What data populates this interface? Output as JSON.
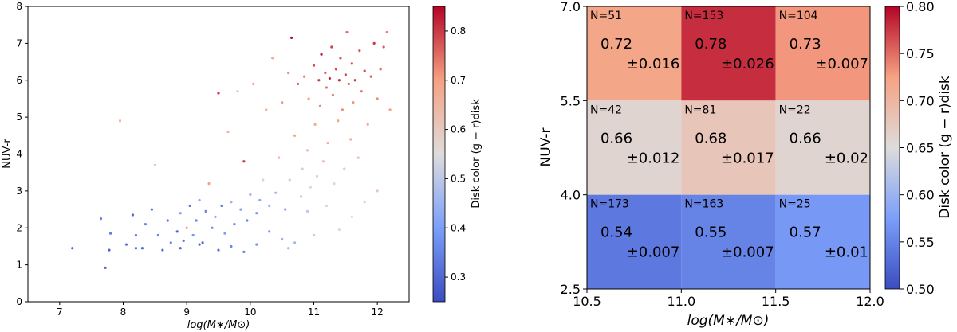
{
  "colors": {
    "cold": "#3b4cc0",
    "mid": "#dddcdc",
    "warm": "#b40426"
  },
  "chart_data": [
    {
      "type": "scatter",
      "title": "",
      "xlabel": "log(M∗/M⊙)",
      "ylabel": "NUV-r",
      "xlim": [
        6.5,
        12.5
      ],
      "ylim": [
        0,
        8
      ],
      "xticks": [
        "7",
        "8",
        "9",
        "10",
        "11",
        "12"
      ],
      "yticks": [
        "0",
        "1",
        "2",
        "3",
        "4",
        "5",
        "6",
        "7",
        "8"
      ],
      "grid": false,
      "colorbar": {
        "label": "Disk color (g − r)disk",
        "range": [
          0.25,
          0.85
        ],
        "ticks": [
          "0.3",
          "0.4",
          "0.5",
          "0.6",
          "0.7",
          "0.8"
        ]
      },
      "points": [
        [
          7.2,
          1.45,
          0.3
        ],
        [
          7.65,
          2.25,
          0.35
        ],
        [
          7.72,
          0.92,
          0.3
        ],
        [
          7.78,
          1.4,
          0.3
        ],
        [
          7.8,
          1.85,
          0.34
        ],
        [
          7.95,
          4.9,
          0.65
        ],
        [
          8.05,
          1.55,
          0.32
        ],
        [
          8.15,
          2.35,
          0.3
        ],
        [
          8.2,
          1.8,
          0.33
        ],
        [
          8.3,
          1.45,
          0.3
        ],
        [
          8.35,
          2.1,
          0.36
        ],
        [
          8.45,
          2.5,
          0.32
        ],
        [
          8.5,
          3.7,
          0.6
        ],
        [
          8.55,
          1.8,
          0.35
        ],
        [
          8.62,
          1.4,
          0.31
        ],
        [
          8.7,
          2.2,
          0.33
        ],
        [
          8.75,
          1.6,
          0.36
        ],
        [
          8.85,
          1.9,
          0.3
        ],
        [
          8.9,
          2.4,
          0.4
        ],
        [
          8.95,
          1.65,
          0.34
        ],
        [
          9.0,
          2.0,
          0.7
        ],
        [
          9.05,
          2.6,
          0.32
        ],
        [
          9.1,
          1.8,
          0.38
        ],
        [
          9.15,
          2.2,
          0.35
        ],
        [
          9.2,
          2.75,
          0.41
        ],
        [
          9.25,
          1.6,
          0.3
        ],
        [
          9.3,
          2.45,
          0.36
        ],
        [
          9.35,
          3.2,
          0.7
        ],
        [
          9.4,
          2.0,
          0.38
        ],
        [
          9.45,
          2.3,
          0.42
        ],
        [
          9.5,
          5.65,
          0.8
        ],
        [
          9.55,
          2.6,
          0.34
        ],
        [
          9.6,
          1.85,
          0.4
        ],
        [
          9.65,
          4.6,
          0.65
        ],
        [
          9.7,
          2.7,
          0.45
        ],
        [
          9.75,
          2.1,
          0.36
        ],
        [
          9.8,
          5.7,
          0.62
        ],
        [
          9.85,
          2.5,
          0.4
        ],
        [
          9.9,
          3.8,
          0.8
        ],
        [
          9.95,
          2.2,
          0.35
        ],
        [
          10.0,
          2.9,
          0.45
        ],
        [
          10.05,
          5.9,
          0.7
        ],
        [
          10.1,
          2.4,
          0.39
        ],
        [
          10.15,
          2.75,
          0.42
        ],
        [
          10.2,
          3.3,
          0.58
        ],
        [
          10.25,
          5.2,
          0.68
        ],
        [
          10.3,
          2.6,
          0.44
        ],
        [
          10.35,
          6.6,
          0.68
        ],
        [
          10.4,
          2.95,
          0.47
        ],
        [
          10.45,
          3.9,
          0.66
        ],
        [
          10.5,
          5.4,
          0.72
        ],
        [
          10.55,
          2.5,
          0.42
        ],
        [
          10.6,
          6.2,
          0.72
        ],
        [
          10.62,
          3.3,
          0.52
        ],
        [
          10.65,
          7.15,
          0.84
        ],
        [
          10.7,
          4.5,
          0.7
        ],
        [
          10.75,
          5.9,
          0.75
        ],
        [
          10.8,
          2.85,
          0.5
        ],
        [
          10.82,
          3.6,
          0.6
        ],
        [
          10.85,
          6.1,
          0.73
        ],
        [
          10.9,
          4.1,
          0.64
        ],
        [
          10.92,
          5.5,
          0.7
        ],
        [
          10.95,
          3.1,
          0.55
        ],
        [
          11.0,
          6.4,
          0.78
        ],
        [
          11.02,
          4.8,
          0.68
        ],
        [
          11.05,
          3.4,
          0.58
        ],
        [
          11.08,
          6.0,
          0.8
        ],
        [
          11.1,
          5.3,
          0.72
        ],
        [
          11.12,
          6.7,
          0.83
        ],
        [
          11.15,
          3.8,
          0.62
        ],
        [
          11.18,
          6.2,
          0.76
        ],
        [
          11.2,
          5.8,
          0.74
        ],
        [
          11.22,
          4.3,
          0.66
        ],
        [
          11.25,
          6.05,
          0.82
        ],
        [
          11.28,
          6.9,
          0.79
        ],
        [
          11.3,
          5.6,
          0.73
        ],
        [
          11.32,
          3.2,
          0.56
        ],
        [
          11.35,
          6.3,
          0.78
        ],
        [
          11.38,
          4.9,
          0.7
        ],
        [
          11.4,
          6.0,
          0.81
        ],
        [
          11.42,
          6.6,
          0.77
        ],
        [
          11.45,
          5.2,
          0.72
        ],
        [
          11.48,
          3.6,
          0.6
        ],
        [
          11.5,
          6.15,
          0.79
        ],
        [
          11.52,
          7.3,
          0.75
        ],
        [
          11.55,
          5.9,
          0.76
        ],
        [
          11.58,
          4.4,
          0.67
        ],
        [
          11.6,
          6.45,
          0.78
        ],
        [
          11.62,
          5.4,
          0.71
        ],
        [
          11.65,
          6.0,
          0.8
        ],
        [
          11.7,
          3.9,
          0.63
        ],
        [
          11.72,
          6.8,
          0.77
        ],
        [
          11.75,
          5.7,
          0.74
        ],
        [
          11.8,
          6.25,
          0.78
        ],
        [
          11.85,
          4.8,
          0.69
        ],
        [
          11.9,
          6.1,
          0.76
        ],
        [
          11.95,
          7.0,
          0.8
        ],
        [
          12.0,
          5.5,
          0.72
        ],
        [
          12.05,
          6.3,
          0.75
        ],
        [
          12.1,
          6.9,
          0.77
        ],
        [
          12.15,
          7.3,
          0.73
        ],
        [
          12.2,
          5.2,
          0.7
        ],
        [
          11.4,
          1.95,
          0.55
        ],
        [
          11.6,
          2.3,
          0.56
        ],
        [
          11.2,
          2.6,
          0.53
        ],
        [
          10.9,
          2.45,
          0.5
        ],
        [
          10.7,
          1.6,
          0.46
        ],
        [
          10.5,
          1.7,
          0.44
        ],
        [
          10.3,
          1.9,
          0.4
        ],
        [
          10.1,
          1.55,
          0.38
        ],
        [
          9.9,
          1.35,
          0.35
        ],
        [
          9.7,
          1.5,
          0.36
        ],
        [
          9.5,
          1.4,
          0.32
        ],
        [
          9.2,
          1.55,
          0.3
        ],
        [
          8.9,
          1.45,
          0.3
        ],
        [
          8.2,
          1.45,
          0.3
        ],
        [
          10.6,
          1.45,
          0.45
        ],
        [
          11.0,
          1.8,
          0.5
        ],
        [
          11.8,
          2.7,
          0.57
        ],
        [
          12.0,
          3.0,
          0.6
        ]
      ]
    },
    {
      "type": "heatmap",
      "title": "",
      "xlabel": "log(M∗/M⊙)",
      "ylabel": "NUV-r",
      "x_edges": [
        10.5,
        11.0,
        11.5,
        12.0
      ],
      "y_edges": [
        2.5,
        4.0,
        5.5,
        7.0
      ],
      "xticks": [
        "10.5",
        "11.0",
        "11.5",
        "12.0"
      ],
      "yticks": [
        "2.5",
        "4.0",
        "5.5",
        "7.0"
      ],
      "colorbar": {
        "label": "Disk color (g − r)disk",
        "range": [
          0.5,
          0.8
        ],
        "ticks": [
          "0.50",
          "0.55",
          "0.60",
          "0.65",
          "0.70",
          "0.75",
          "0.80"
        ]
      },
      "cells": [
        {
          "row": 2,
          "col": 0,
          "n_label": "N=51",
          "value": 0.72,
          "mean_label": "0.72",
          "err_label": "±0.016"
        },
        {
          "row": 2,
          "col": 1,
          "n_label": "N=153",
          "value": 0.78,
          "mean_label": "0.78",
          "err_label": "±0.026"
        },
        {
          "row": 2,
          "col": 2,
          "n_label": "N=104",
          "value": 0.73,
          "mean_label": "0.73",
          "err_label": "±0.007"
        },
        {
          "row": 1,
          "col": 0,
          "n_label": "N=42",
          "value": 0.66,
          "mean_label": "0.66",
          "err_label": "±0.012"
        },
        {
          "row": 1,
          "col": 1,
          "n_label": "N=81",
          "value": 0.68,
          "mean_label": "0.68",
          "err_label": "±0.017"
        },
        {
          "row": 1,
          "col": 2,
          "n_label": "N=22",
          "value": 0.66,
          "mean_label": "0.66",
          "err_label": "±0.02"
        },
        {
          "row": 0,
          "col": 0,
          "n_label": "N=173",
          "value": 0.54,
          "mean_label": "0.54",
          "err_label": "±0.007"
        },
        {
          "row": 0,
          "col": 1,
          "n_label": "N=163",
          "value": 0.55,
          "mean_label": "0.55",
          "err_label": "±0.007"
        },
        {
          "row": 0,
          "col": 2,
          "n_label": "N=25",
          "value": 0.57,
          "mean_label": "0.57",
          "err_label": "±0.01"
        }
      ]
    }
  ]
}
